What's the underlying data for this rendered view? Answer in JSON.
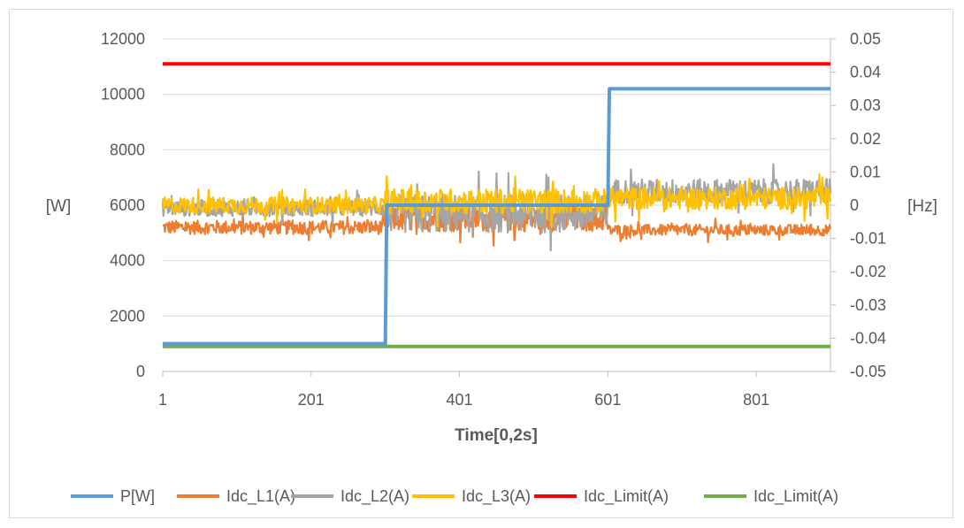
{
  "chart_data": {
    "type": "line",
    "title": "",
    "xlabel": "Time[0,2s]",
    "ylabel_left": "[W]",
    "ylabel_right": "[Hz]",
    "x_range": [
      1,
      901
    ],
    "x_ticks": [
      1,
      201,
      401,
      601,
      801
    ],
    "x_tick_labels": [
      "1",
      "201",
      "401",
      "601",
      "801"
    ],
    "y_left_range": [
      0,
      12000
    ],
    "y_left_ticks": [
      0,
      2000,
      4000,
      6000,
      8000,
      10000,
      12000
    ],
    "y_left_tick_labels": [
      "0",
      "2000",
      "4000",
      "6000",
      "8000",
      "10000",
      "12000"
    ],
    "y_right_range": [
      -0.05,
      0.05
    ],
    "y_right_ticks": [
      -0.05,
      -0.04,
      -0.03,
      -0.02,
      -0.01,
      0,
      0.01,
      0.02,
      0.03,
      0.04,
      0.05
    ],
    "y_right_tick_labels": [
      "-0.05",
      "-0.04",
      "-0.03",
      "-0.02",
      "-0.01",
      "0",
      "0.01",
      "0.02",
      "0.03",
      "0.04",
      "0.05"
    ],
    "grid": true,
    "legend_position": "bottom",
    "series": [
      {
        "name": "P[W]",
        "color": "#5b9bd5",
        "kind": "step",
        "points": [
          [
            1,
            1000
          ],
          [
            301,
            1000
          ],
          [
            303,
            6000
          ],
          [
            601,
            6000
          ],
          [
            603,
            10200
          ],
          [
            901,
            10200
          ]
        ]
      },
      {
        "name": "Idc_L1(A)",
        "color": "#ed7d31",
        "kind": "noise",
        "segments": [
          [
            1,
            300,
            5200,
            250
          ],
          [
            301,
            600,
            5500,
            450
          ],
          [
            601,
            901,
            5100,
            200
          ]
        ]
      },
      {
        "name": "Idc_L2(A)",
        "color": "#a5a5a5",
        "kind": "noise",
        "segments": [
          [
            1,
            300,
            5900,
            300
          ],
          [
            301,
            600,
            5700,
            700
          ],
          [
            601,
            901,
            6500,
            450
          ]
        ]
      },
      {
        "name": "Idc_L3(A)",
        "color": "#ffc000",
        "kind": "noise",
        "segments": [
          [
            1,
            300,
            6000,
            300
          ],
          [
            301,
            600,
            6150,
            450
          ],
          [
            601,
            901,
            6250,
            400
          ]
        ]
      },
      {
        "name": "Idc_Limit(A)",
        "color": "#ff0000",
        "kind": "constant",
        "value": 11100
      },
      {
        "name": "Idc_Limit(A)",
        "color": "#70ad47",
        "kind": "constant",
        "value": 900
      }
    ]
  }
}
